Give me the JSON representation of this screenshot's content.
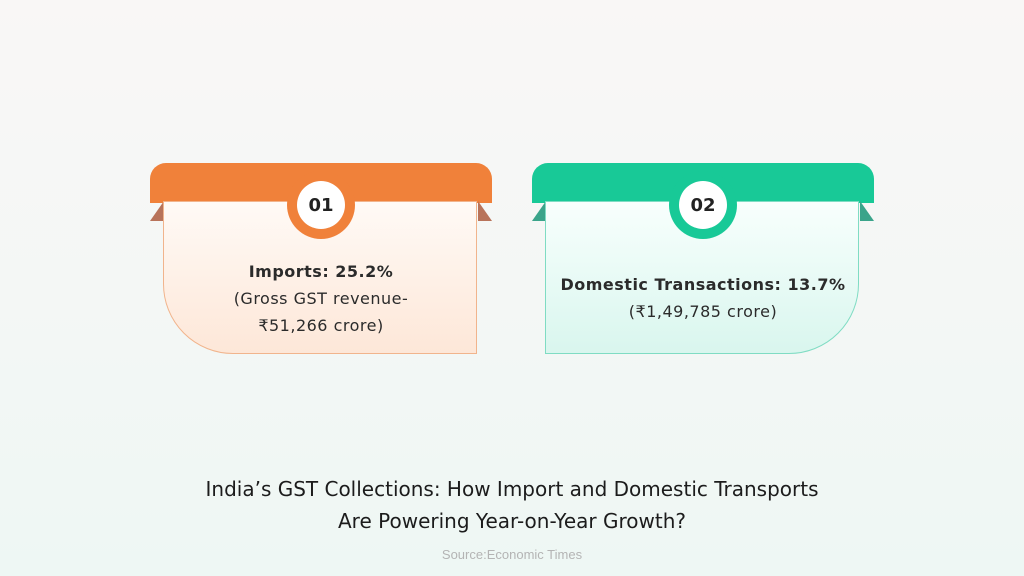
{
  "cards": [
    {
      "number": "01",
      "title": "Imports: 25.2%",
      "lines": [
        "(Gross GST revenue-",
        "₹51,266 crore)"
      ],
      "accent": "#f0813a"
    },
    {
      "number": "02",
      "title": "Domestic Transactions: 13.7%",
      "lines": [
        "(₹1,49,785 crore)"
      ],
      "accent": "#18c997"
    }
  ],
  "headline": {
    "line1": "India’s GST Collections: How Import and Domestic Transports",
    "line2": "Are Powering Year-on-Year Growth?"
  },
  "source": "Source:Economic Times"
}
